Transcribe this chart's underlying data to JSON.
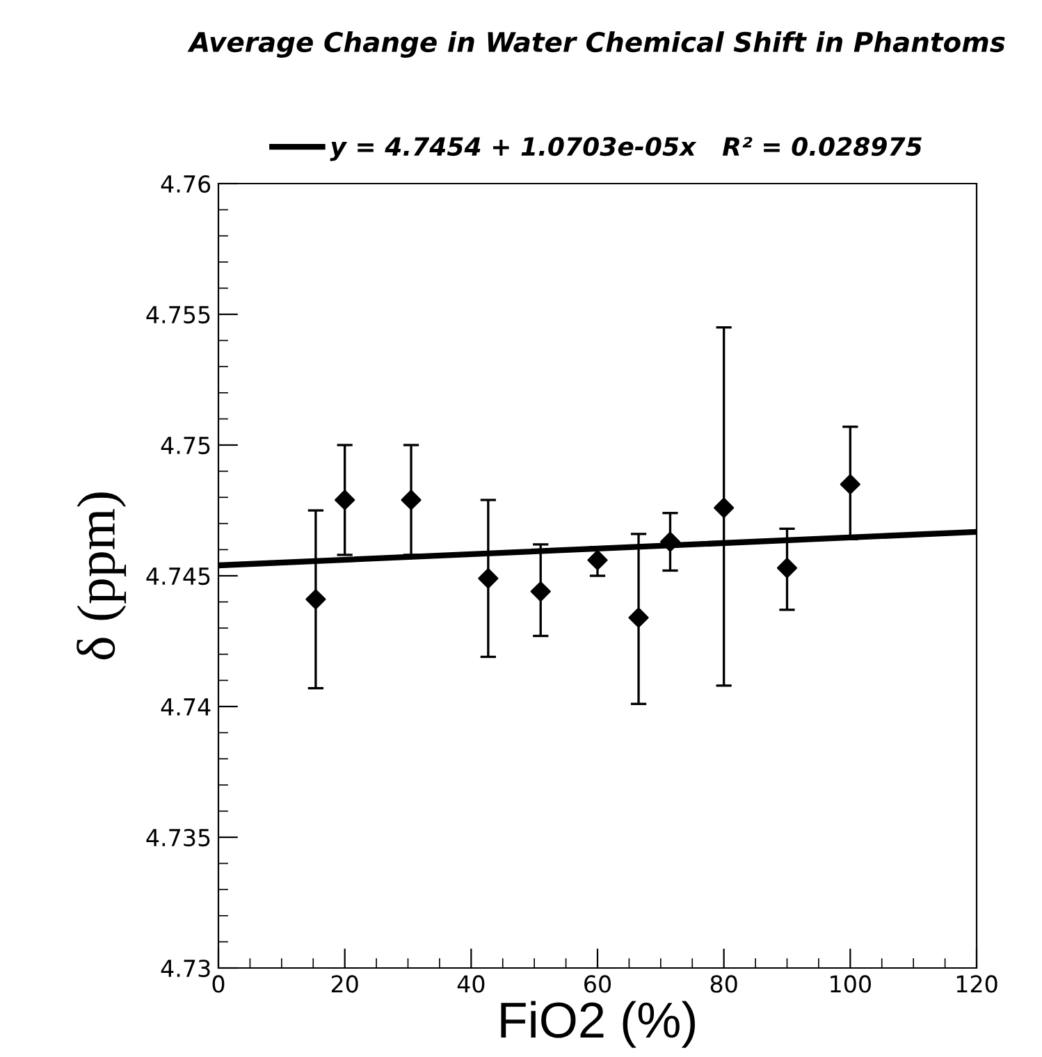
{
  "chart_data": {
    "type": "scatter",
    "title": "Average Change in Water Chemical Shift in Phantoms",
    "xlabel": "FiO2 (%)",
    "ylabel": "δ (ppm)",
    "xlim": [
      0,
      120
    ],
    "xticks": [
      0,
      20,
      40,
      60,
      80,
      100,
      120
    ],
    "ylim": [
      4.73,
      4.76
    ],
    "yticks": [
      4.73,
      4.735,
      4.74,
      4.745,
      4.75,
      4.755,
      4.76
    ],
    "grid": false,
    "legend": "top",
    "series": [
      {
        "marker": "diamond",
        "color": "#000000",
        "x": [
          15.4,
          20,
          30.5,
          42.7,
          51,
          60,
          66.5,
          71.5,
          80,
          90,
          100
        ],
        "values": [
          4.7441,
          4.7479,
          4.7479,
          4.7449,
          4.7444,
          4.7456,
          4.7434,
          4.7463,
          4.7476,
          4.7453,
          4.7485
        ],
        "errors": [
          [
            4.7407,
            4.7475
          ],
          [
            4.7458,
            4.75
          ],
          [
            4.7458,
            4.75
          ],
          [
            4.7419,
            4.7479
          ],
          [
            4.7427,
            4.7462
          ],
          [
            4.745,
            4.7461
          ],
          [
            4.7401,
            4.7466
          ],
          [
            4.7452,
            4.7474
          ],
          [
            4.7408,
            4.7545
          ],
          [
            4.7437,
            4.7468
          ],
          [
            4.7464,
            4.7507
          ]
        ]
      },
      {
        "type": "line",
        "name": "y = 4.7454 + 1.0703e-05x   R² = 0.028975",
        "color": "#000000",
        "line_style": "solid",
        "x": [
          0,
          120
        ],
        "values": [
          4.7454,
          4.74668
        ]
      }
    ]
  }
}
